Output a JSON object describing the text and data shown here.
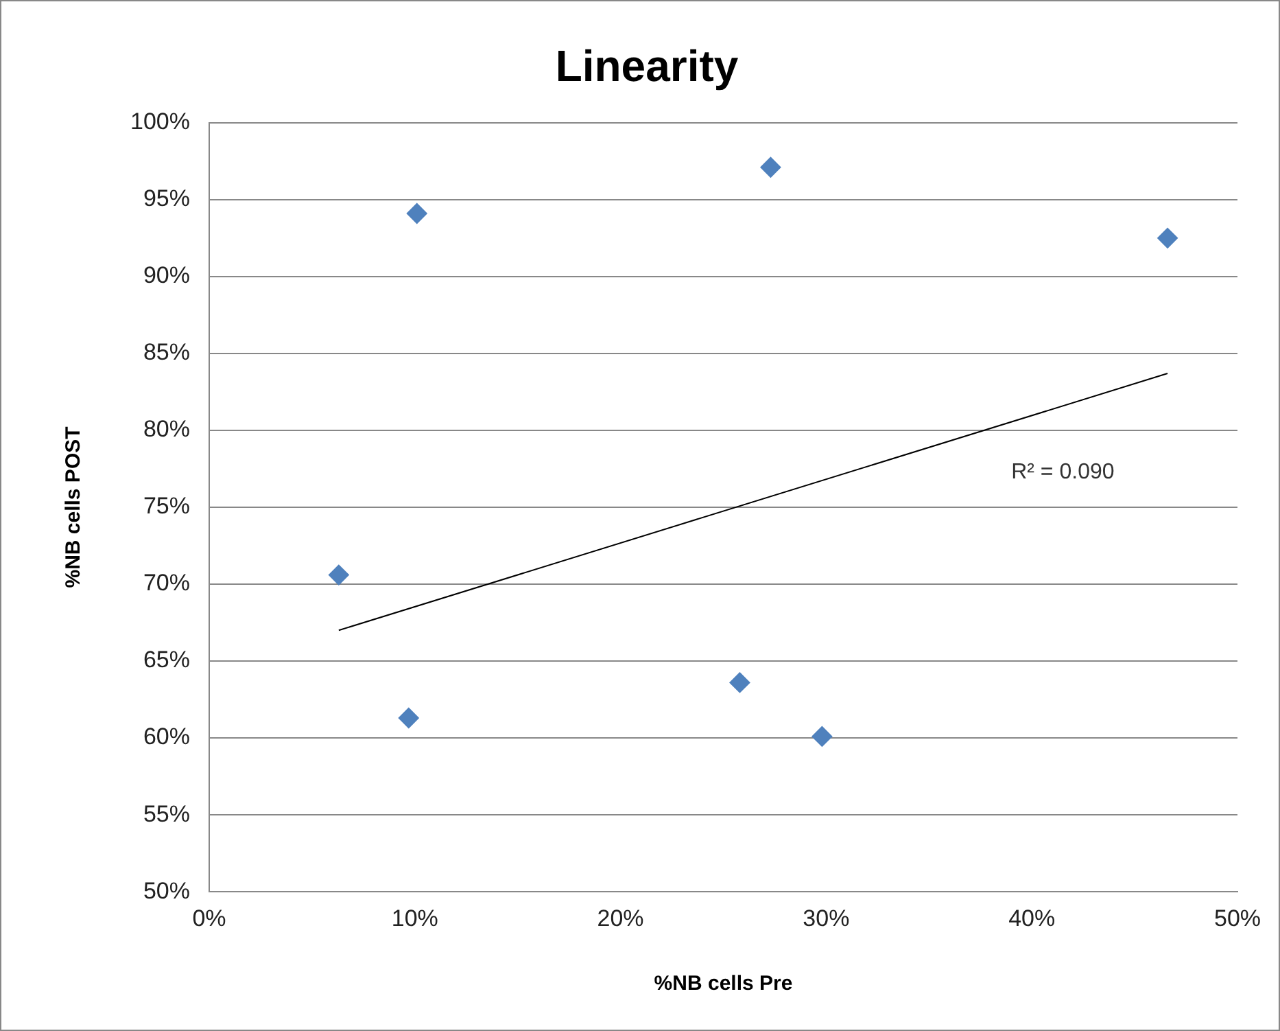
{
  "chart_data": {
    "type": "scatter",
    "title": "Linearity",
    "xlabel": "%NB cells Pre",
    "ylabel": "%NB cells POST",
    "xlim": [
      0,
      50
    ],
    "xticks": [
      {
        "value": 0,
        "label": "0%"
      },
      {
        "value": 10,
        "label": "10%"
      },
      {
        "value": 20,
        "label": "20%"
      },
      {
        "value": 30,
        "label": "30%"
      },
      {
        "value": 40,
        "label": "40%"
      },
      {
        "value": 50,
        "label": "50%"
      }
    ],
    "ylim": [
      50,
      100
    ],
    "yticks": [
      {
        "value": 50,
        "label": "50%"
      },
      {
        "value": 55,
        "label": "55%"
      },
      {
        "value": 60,
        "label": "60%"
      },
      {
        "value": 65,
        "label": "65%"
      },
      {
        "value": 70,
        "label": "70%"
      },
      {
        "value": 75,
        "label": "75%"
      },
      {
        "value": 80,
        "label": "80%"
      },
      {
        "value": 85,
        "label": "85%"
      },
      {
        "value": 90,
        "label": "90%"
      },
      {
        "value": 95,
        "label": "95%"
      },
      {
        "value": 100,
        "label": "100%"
      }
    ],
    "grid": "y",
    "marker": "diamond",
    "series": [
      {
        "color": "#4f81bd",
        "x": [
          6.3,
          10.1,
          9.7,
          27.3,
          25.8,
          29.8,
          46.6
        ],
        "values": [
          70.6,
          94.1,
          61.3,
          97.1,
          63.6,
          60.1,
          92.5
        ]
      },
      {
        "type": "line",
        "color": "#000000",
        "marker": "none",
        "line_style": "solid",
        "x": [
          6.3,
          46.6
        ],
        "values": [
          67.0,
          83.7
        ]
      }
    ],
    "annotations": [
      "R² = 0.090"
    ]
  }
}
